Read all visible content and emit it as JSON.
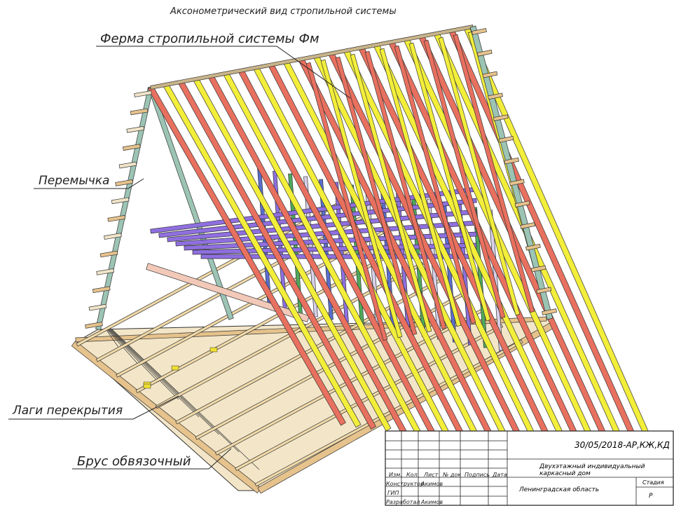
{
  "title": "Аксонометрический вид стропильной системы",
  "labels": {
    "truss": "Ферма стропильной системы Фм",
    "lintel": "Перемычка",
    "joists": "Лаги перекрытия",
    "beam": "Брус обвязочный"
  },
  "stamp": {
    "doc_code": "30/05/2018-АР,КЖ,КД",
    "object": "Двухэтажный индивидуальный каркасный дом",
    "region": "Ленинградская область",
    "stage_header": "Стадия",
    "stage_value": "Р",
    "col_headers": [
      "Изм.",
      "Кол.",
      "Лист",
      "№ док",
      "Подпись",
      "Дата"
    ],
    "rows": [
      {
        "role": "Конструктор",
        "name": "Акимов"
      },
      {
        "role": "ГИП",
        "name": ""
      },
      {
        "role": "Разработал",
        "name": "Акимов"
      }
    ]
  },
  "colors": {
    "rafter_red": "#e8705f",
    "rafter_yellow": "#f2ee3a",
    "post_blue": "#5a6ecf",
    "post_purple": "#8f6fe0",
    "post_green": "#4faa5a",
    "wood_tan": "#e6c28c",
    "outline": "#333333"
  }
}
